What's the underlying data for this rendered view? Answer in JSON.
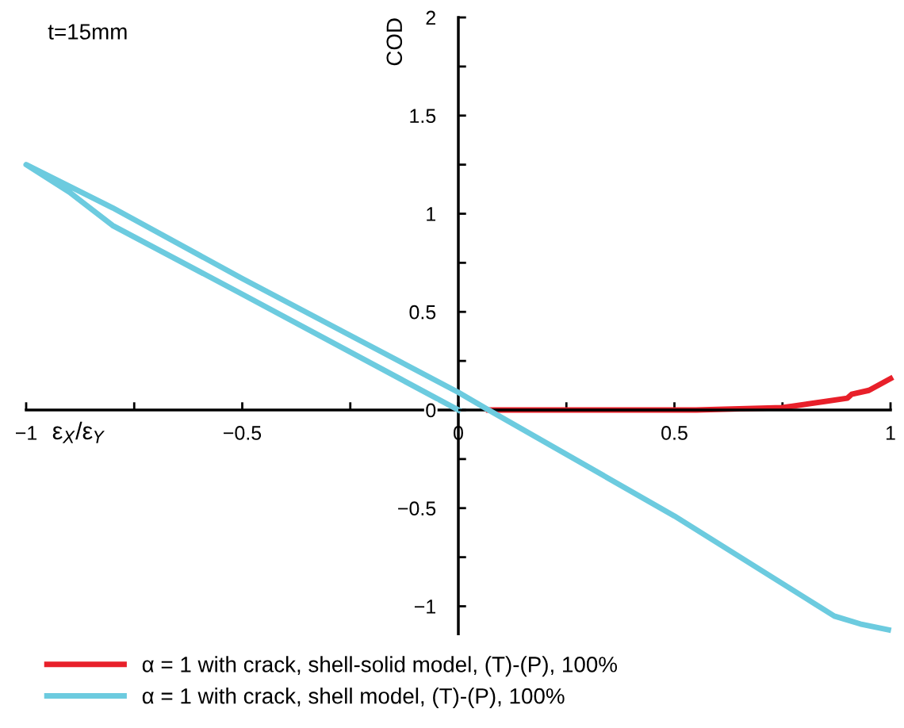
{
  "chart_data": {
    "type": "line",
    "xlabel": "ε$_{X}$/ε$_{Y}$",
    "ylabel": "COD",
    "annotations": [
      "t=15mm"
    ],
    "xlim": [
      -1,
      1
    ],
    "ylim": [
      -1.14,
      2
    ],
    "xticks": [
      {
        "value": -1,
        "label": "−1"
      },
      {
        "value": -0.75,
        "label": null
      },
      {
        "value": -0.5,
        "label": "−0.5"
      },
      {
        "value": -0.25,
        "label": null
      },
      0,
      {
        "value": 0.25,
        "label": null
      },
      0.5,
      {
        "value": 0.75,
        "label": null
      },
      1
    ],
    "yticks": [
      {
        "value": -1,
        "label": "−1"
      },
      {
        "value": -0.75,
        "label": null
      },
      {
        "value": -0.5,
        "label": "−0.5"
      },
      {
        "value": -0.25,
        "label": null
      },
      0,
      {
        "value": 0.25,
        "label": null
      },
      0.5,
      {
        "value": 0.75,
        "label": null
      },
      1,
      {
        "value": 1.25,
        "label": null
      },
      1.5,
      {
        "value": 1.75,
        "label": null
      },
      2
    ],
    "grid": false,
    "legend": "bottom",
    "line_style": "solid",
    "marker": "none",
    "series": [
      {
        "name": "α = 1 with crack, shell-solid model, (T)-(P), 100%",
        "color": "#e8202a",
        "x": [
          0.07,
          0.3,
          0.55,
          0.75,
          0.9,
          0.91,
          0.95,
          1
        ],
        "values": [
          0,
          0,
          0,
          0.012,
          0.06,
          0.08,
          0.1,
          0.16
        ]
      },
      {
        "name": "α = 1 with crack, shell model, (T)-(P), 100%",
        "color": "#6ccbdf",
        "x": [
          0,
          -0.5,
          -0.8,
          -0.9,
          -1,
          -0.8,
          -0.5,
          -0.25,
          0,
          0.07,
          0.5,
          0.87,
          0.93,
          0.995
        ],
        "values": [
          0,
          0.59,
          0.94,
          1.11,
          1.25,
          1.03,
          0.67,
          0.38,
          0.09,
          0,
          -0.54,
          -1.05,
          -1.09,
          -1.12
        ]
      }
    ]
  }
}
